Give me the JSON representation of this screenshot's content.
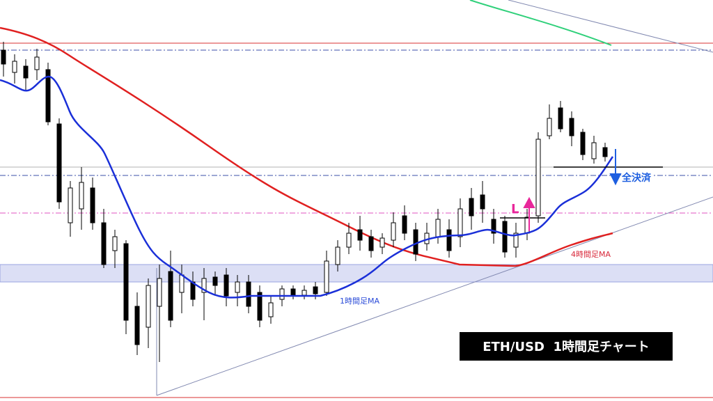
{
  "chart_data": {
    "type": "candlestick",
    "title": "ETH/USD  1時間足チャート",
    "annotations": [
      {
        "text": "1時間足MA",
        "color": "#2a4bd8"
      },
      {
        "text": "4時間足MA",
        "color": "#d8283a"
      },
      {
        "text": "L",
        "color": "#e8279a"
      },
      {
        "text": "全決済",
        "color": "#1e5fe0"
      }
    ]
  }
}
